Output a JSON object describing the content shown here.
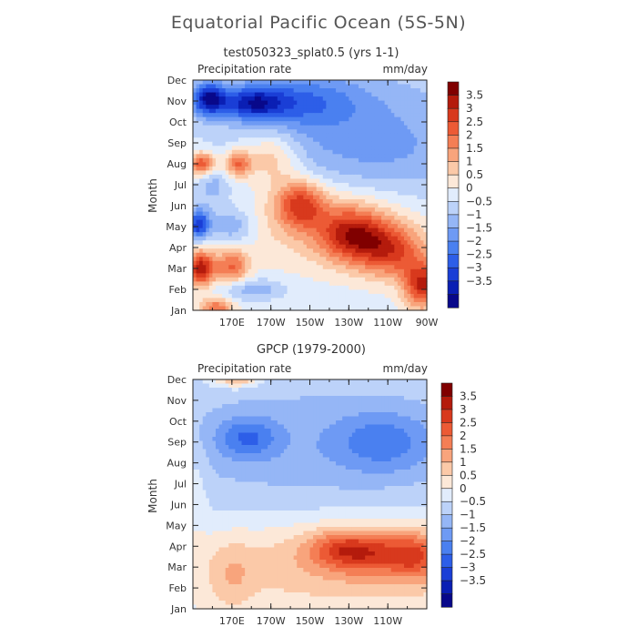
{
  "figure": {
    "title": "Equatorial Pacific Ocean (5S-5N)"
  },
  "colors": {
    "palette": [
      "#08088a",
      "#0a1fb4",
      "#1a3ed6",
      "#2d5ee8",
      "#4a80f0",
      "#6e9af4",
      "#95b6f6",
      "#bcd2f9",
      "#e1ecfc",
      "#fce8d8",
      "#fbc9a8",
      "#f8a47c",
      "#f47e55",
      "#ec5a35",
      "#d8391d",
      "#b41b0c",
      "#800000"
    ]
  },
  "chart_data": [
    {
      "type": "heatmap",
      "title": "test050323_splat0.5 (yrs 1-1)",
      "left_label": "Precipitation rate",
      "right_label": "mm/day",
      "ylabel": "Month",
      "xlabel": "",
      "x_ticks": [
        "170E",
        "170W",
        "150W",
        "130W",
        "110W",
        "90W"
      ],
      "x_range": [
        "150E",
        "90W"
      ],
      "y_ticks": [
        "Jan",
        "Feb",
        "Mar",
        "Apr",
        "May",
        "Jun",
        "Jul",
        "Aug",
        "Sep",
        "Oct",
        "Nov",
        "Dec"
      ],
      "colorbar_levels": [
        "3.5",
        "3",
        "2.5",
        "2",
        "1.5",
        "1",
        "0.5",
        "0",
        "-0.5",
        "-1",
        "-1.5",
        "-2",
        "-2.5",
        "-3",
        "-3.5"
      ],
      "value_range": [
        -3.75,
        3.75
      ]
    },
    {
      "type": "heatmap",
      "title": "GPCP (1979-2000)",
      "left_label": "Precipitation rate",
      "right_label": "mm/day",
      "ylabel": "Month",
      "xlabel": "",
      "x_ticks": [
        "170E",
        "170W",
        "150W",
        "130W",
        "110W"
      ],
      "x_range": [
        "150E",
        "90W"
      ],
      "y_ticks": [
        "Jan",
        "Feb",
        "Mar",
        "Apr",
        "May",
        "Jun",
        "Jul",
        "Aug",
        "Sep",
        "Oct",
        "Nov",
        "Dec"
      ],
      "colorbar_levels": [
        "3.5",
        "3",
        "2.5",
        "2",
        "1.5",
        "1",
        "0.5",
        "0",
        "-0.5",
        "-1",
        "-1.5",
        "-2",
        "-2.5",
        "-3",
        "-3.5"
      ],
      "value_range": [
        -3.75,
        3.75
      ]
    }
  ]
}
